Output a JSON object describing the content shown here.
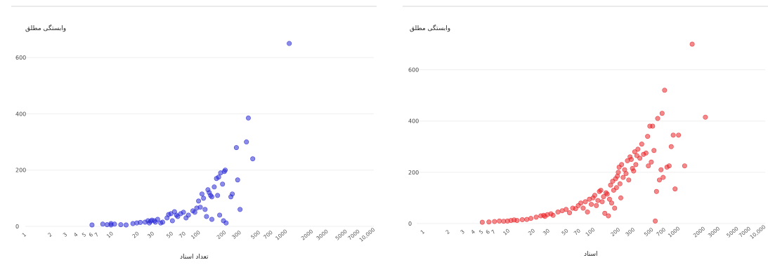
{
  "chart_data": [
    {
      "type": "scatter",
      "ylabel": "وابستگی مطلق",
      "xlabel": "تعداد اسناد",
      "x_scale": "log",
      "x_ticks": [
        "1",
        "2",
        "3",
        "4",
        "5",
        "6",
        "7",
        "10",
        "20",
        "30",
        "50",
        "70",
        "100",
        "200",
        "300",
        "500",
        "700",
        "1000",
        "2000",
        "3000",
        "5000",
        "7000",
        "10,000"
      ],
      "y_ticks": [
        "0",
        "200",
        "400",
        "600"
      ],
      "ylim": [
        0,
        680
      ],
      "grid": true,
      "color": "#2b2bd6",
      "points": [
        [
          6,
          5
        ],
        [
          8,
          8
        ],
        [
          9,
          6
        ],
        [
          10,
          10
        ],
        [
          10,
          5
        ],
        [
          11,
          8
        ],
        [
          13,
          6
        ],
        [
          15,
          5
        ],
        [
          18,
          10
        ],
        [
          20,
          12
        ],
        [
          22,
          14
        ],
        [
          25,
          15
        ],
        [
          27,
          20
        ],
        [
          28,
          12
        ],
        [
          29,
          18
        ],
        [
          30,
          22
        ],
        [
          32,
          20
        ],
        [
          33,
          15
        ],
        [
          35,
          25
        ],
        [
          38,
          12
        ],
        [
          40,
          15
        ],
        [
          45,
          30
        ],
        [
          47,
          42
        ],
        [
          50,
          45
        ],
        [
          52,
          20
        ],
        [
          55,
          52
        ],
        [
          58,
          40
        ],
        [
          60,
          35
        ],
        [
          65,
          45
        ],
        [
          70,
          50
        ],
        [
          75,
          30
        ],
        [
          80,
          40
        ],
        [
          90,
          55
        ],
        [
          95,
          50
        ],
        [
          100,
          65
        ],
        [
          105,
          90
        ],
        [
          110,
          68
        ],
        [
          115,
          115
        ],
        [
          120,
          100
        ],
        [
          125,
          60
        ],
        [
          130,
          35
        ],
        [
          135,
          130
        ],
        [
          140,
          120
        ],
        [
          145,
          110
        ],
        [
          150,
          105
        ],
        [
          150,
          25
        ],
        [
          160,
          140
        ],
        [
          170,
          170
        ],
        [
          175,
          110
        ],
        [
          180,
          175
        ],
        [
          185,
          40
        ],
        [
          190,
          190
        ],
        [
          200,
          150
        ],
        [
          205,
          20
        ],
        [
          210,
          195
        ],
        [
          215,
          200
        ],
        [
          220,
          12
        ],
        [
          250,
          105
        ],
        [
          260,
          115
        ],
        [
          290,
          280
        ],
        [
          300,
          165
        ],
        [
          320,
          60
        ],
        [
          380,
          300
        ],
        [
          400,
          385
        ],
        [
          450,
          240
        ],
        [
          1200,
          650
        ]
      ]
    },
    {
      "type": "scatter",
      "ylabel": "وابستگی مطلق",
      "xlabel": "اسناد",
      "x_scale": "log",
      "x_ticks": [
        "1",
        "2",
        "3",
        "4",
        "5",
        "6",
        "7",
        "10",
        "20",
        "30",
        "50",
        "70",
        "100",
        "200",
        "300",
        "500",
        "700",
        "1000",
        "2000",
        "3000",
        "5000",
        "7000",
        "10,000"
      ],
      "y_ticks": [
        "0",
        "200",
        "400",
        "600"
      ],
      "ylim": [
        0,
        730
      ],
      "grid": true,
      "color": "#e8262a",
      "points": [
        [
          5,
          5
        ],
        [
          6,
          6
        ],
        [
          7,
          8
        ],
        [
          8,
          10
        ],
        [
          9,
          9
        ],
        [
          10,
          10
        ],
        [
          11,
          12
        ],
        [
          12,
          14
        ],
        [
          13,
          12
        ],
        [
          15,
          15
        ],
        [
          17,
          16
        ],
        [
          19,
          20
        ],
        [
          22,
          25
        ],
        [
          25,
          30
        ],
        [
          27,
          32
        ],
        [
          28,
          28
        ],
        [
          30,
          35
        ],
        [
          33,
          38
        ],
        [
          35,
          32
        ],
        [
          40,
          45
        ],
        [
          45,
          50
        ],
        [
          50,
          55
        ],
        [
          55,
          42
        ],
        [
          60,
          60
        ],
        [
          65,
          58
        ],
        [
          70,
          70
        ],
        [
          75,
          80
        ],
        [
          80,
          60
        ],
        [
          85,
          85
        ],
        [
          90,
          45
        ],
        [
          95,
          95
        ],
        [
          100,
          75
        ],
        [
          105,
          100
        ],
        [
          110,
          110
        ],
        [
          115,
          70
        ],
        [
          120,
          90
        ],
        [
          125,
          125
        ],
        [
          130,
          130
        ],
        [
          135,
          85
        ],
        [
          140,
          105
        ],
        [
          145,
          40
        ],
        [
          150,
          120
        ],
        [
          155,
          115
        ],
        [
          160,
          30
        ],
        [
          165,
          95
        ],
        [
          170,
          150
        ],
        [
          175,
          80
        ],
        [
          180,
          165
        ],
        [
          185,
          130
        ],
        [
          190,
          60
        ],
        [
          195,
          175
        ],
        [
          200,
          140
        ],
        [
          205,
          185
        ],
        [
          210,
          200
        ],
        [
          215,
          220
        ],
        [
          220,
          155
        ],
        [
          225,
          100
        ],
        [
          230,
          230
        ],
        [
          240,
          180
        ],
        [
          250,
          210
        ],
        [
          260,
          195
        ],
        [
          270,
          245
        ],
        [
          280,
          170
        ],
        [
          290,
          260
        ],
        [
          300,
          250
        ],
        [
          310,
          215
        ],
        [
          320,
          205
        ],
        [
          330,
          280
        ],
        [
          340,
          230
        ],
        [
          350,
          265
        ],
        [
          360,
          290
        ],
        [
          380,
          255
        ],
        [
          400,
          310
        ],
        [
          420,
          270
        ],
        [
          450,
          275
        ],
        [
          470,
          340
        ],
        [
          480,
          225
        ],
        [
          500,
          380
        ],
        [
          520,
          240
        ],
        [
          540,
          380
        ],
        [
          560,
          285
        ],
        [
          580,
          10
        ],
        [
          600,
          125
        ],
        [
          620,
          410
        ],
        [
          650,
          170
        ],
        [
          680,
          210
        ],
        [
          700,
          430
        ],
        [
          720,
          180
        ],
        [
          750,
          520
        ],
        [
          800,
          220
        ],
        [
          850,
          225
        ],
        [
          900,
          300
        ],
        [
          950,
          345
        ],
        [
          1000,
          135
        ],
        [
          1100,
          345
        ],
        [
          1300,
          225
        ],
        [
          1600,
          700
        ],
        [
          2300,
          415
        ]
      ]
    }
  ]
}
